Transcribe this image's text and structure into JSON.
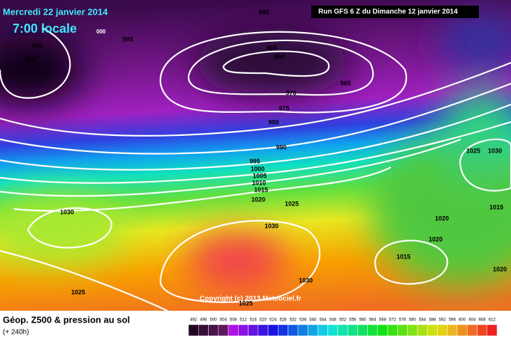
{
  "header": {
    "date": "Mercredi 22 janvier 2014",
    "time": "7:00 locale",
    "time_suffix": "000",
    "run": "Run GFS 6 Z du Dimanche 12 janvier 2014"
  },
  "isobar_labels": [
    "985",
    "995",
    "990",
    "985",
    "965",
    "960",
    "965",
    "970",
    "975",
    "980",
    "990",
    "995",
    "1000",
    "1005",
    "1010",
    "1015",
    "1020",
    "1025",
    "1030",
    "1030",
    "1025",
    "1030",
    "1025",
    "1025",
    "1030",
    "1015",
    "1020",
    "1020",
    "1015",
    "1020"
  ],
  "copyright": "Copyright (c) 2013 Meteociel.fr",
  "footer": {
    "title": "Géop. Z500 & pression au sol",
    "lead": "(+ 240h)"
  },
  "scale": [
    492,
    496,
    500,
    504,
    508,
    512,
    516,
    520,
    524,
    528,
    532,
    536,
    540,
    544,
    548,
    552,
    556,
    560,
    564,
    568,
    572,
    576,
    580,
    584,
    588,
    592,
    596,
    600,
    604,
    608,
    612
  ]
}
